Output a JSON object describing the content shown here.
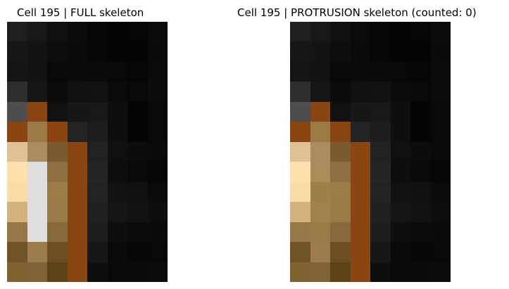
{
  "left_panel": {
    "title": "Cell 195 | FULL skeleton",
    "pixels": [
      [
        "#1f1f1f",
        "#181818",
        "#101010",
        "#0b0b0b",
        "#060606",
        "#050505",
        "#060606",
        "#0b0b0b"
      ],
      [
        "#161616",
        "#131313",
        "#0d0d0d",
        "#0a0a0a",
        "#060606",
        "#050505",
        "#050505",
        "#0a0a0a"
      ],
      [
        "#141414",
        "#121212",
        "#080808",
        "#0a0a0a",
        "#090909",
        "#080808",
        "#060606",
        "#0b0b0b"
      ],
      [
        "#2e2e2e",
        "#161616",
        "#0c0c0c",
        "#101010",
        "#111111",
        "#0b0b0b",
        "#080808",
        "#0c0c0c"
      ],
      [
        "#4d4d4d",
        "#8b4513",
        "#111111",
        "#171717",
        "#181818",
        "#0e0e0e",
        "#050505",
        "#080808"
      ],
      [
        "#8b4513",
        "#9b7a48",
        "#8b4513",
        "#242424",
        "#1d1d1d",
        "#0e0e0e",
        "#050505",
        "#080808"
      ],
      [
        "#e1c093",
        "#ab8c5f",
        "#7a5a2e",
        "#8b4513",
        "#222222",
        "#0f0f0f",
        "#0c0c0c",
        "#0a0a0a"
      ],
      [
        "#fde0ad",
        "#dedede",
        "#8e7040",
        "#8b4513",
        "#252525",
        "#0d0d0d",
        "#080808",
        "#060606"
      ],
      [
        "#f9dca9",
        "#dedede",
        "#9a7c48",
        "#8b4513",
        "#232323",
        "#111111",
        "#101010",
        "#0b0b0b"
      ],
      [
        "#d4b280",
        "#dedede",
        "#9a7a48",
        "#8b4513",
        "#202020",
        "#141414",
        "#121212",
        "#0e0e0e"
      ],
      [
        "#967747",
        "#dedede",
        "#876a3a",
        "#8b4513",
        "#1e1e1e",
        "#0e0e0e",
        "#0b0b0b",
        "#0a0a0a"
      ],
      [
        "#6f5426",
        "#9b7c4a",
        "#6b4f20",
        "#8b4513",
        "#171717",
        "#090909",
        "#070707",
        "#080808"
      ],
      [
        "#7f622f",
        "#816433",
        "#5c4317",
        "#8b4513",
        "#0e0e0e",
        "#090909",
        "#0a0a0a",
        "#0b0b0b"
      ]
    ]
  },
  "right_panel": {
    "title": "Cell 195 | PROTRUSION skeleton (counted: 0)",
    "pixels": [
      [
        "#1f1f1f",
        "#181818",
        "#101010",
        "#0b0b0b",
        "#060606",
        "#050505",
        "#060606",
        "#0b0b0b"
      ],
      [
        "#161616",
        "#131313",
        "#0d0d0d",
        "#0a0a0a",
        "#060606",
        "#050505",
        "#050505",
        "#0a0a0a"
      ],
      [
        "#141414",
        "#121212",
        "#080808",
        "#0a0a0a",
        "#090909",
        "#080808",
        "#060606",
        "#0b0b0b"
      ],
      [
        "#2e2e2e",
        "#161616",
        "#0c0c0c",
        "#101010",
        "#111111",
        "#0b0b0b",
        "#080808",
        "#0c0c0c"
      ],
      [
        "#4d4d4d",
        "#8b4513",
        "#111111",
        "#171717",
        "#181818",
        "#0e0e0e",
        "#050505",
        "#080808"
      ],
      [
        "#8b4513",
        "#9b7a48",
        "#8b4513",
        "#242424",
        "#1d1d1d",
        "#0e0e0e",
        "#050505",
        "#080808"
      ],
      [
        "#e1c093",
        "#ab8c5f",
        "#7a5a2e",
        "#8b4513",
        "#222222",
        "#0f0f0f",
        "#0c0c0c",
        "#0a0a0a"
      ],
      [
        "#fde0ad",
        "#ab8b5a",
        "#8e7040",
        "#8b4513",
        "#252525",
        "#0d0d0d",
        "#080808",
        "#060606"
      ],
      [
        "#f9dca9",
        "#9f804c",
        "#9a7c48",
        "#8b4513",
        "#232323",
        "#111111",
        "#101010",
        "#0b0b0b"
      ],
      [
        "#d4b280",
        "#a1824f",
        "#9a7a48",
        "#8b4513",
        "#202020",
        "#141414",
        "#121212",
        "#0e0e0e"
      ],
      [
        "#967747",
        "#9a7b47",
        "#876a3a",
        "#8b4513",
        "#1e1e1e",
        "#0e0e0e",
        "#0b0b0b",
        "#0a0a0a"
      ],
      [
        "#6f5426",
        "#9b7c4a",
        "#6b4f20",
        "#8b4513",
        "#171717",
        "#090909",
        "#070707",
        "#080808"
      ],
      [
        "#7f622f",
        "#816433",
        "#5c4317",
        "#8b4513",
        "#0e0e0e",
        "#090909",
        "#0a0a0a",
        "#0b0b0b"
      ]
    ]
  }
}
